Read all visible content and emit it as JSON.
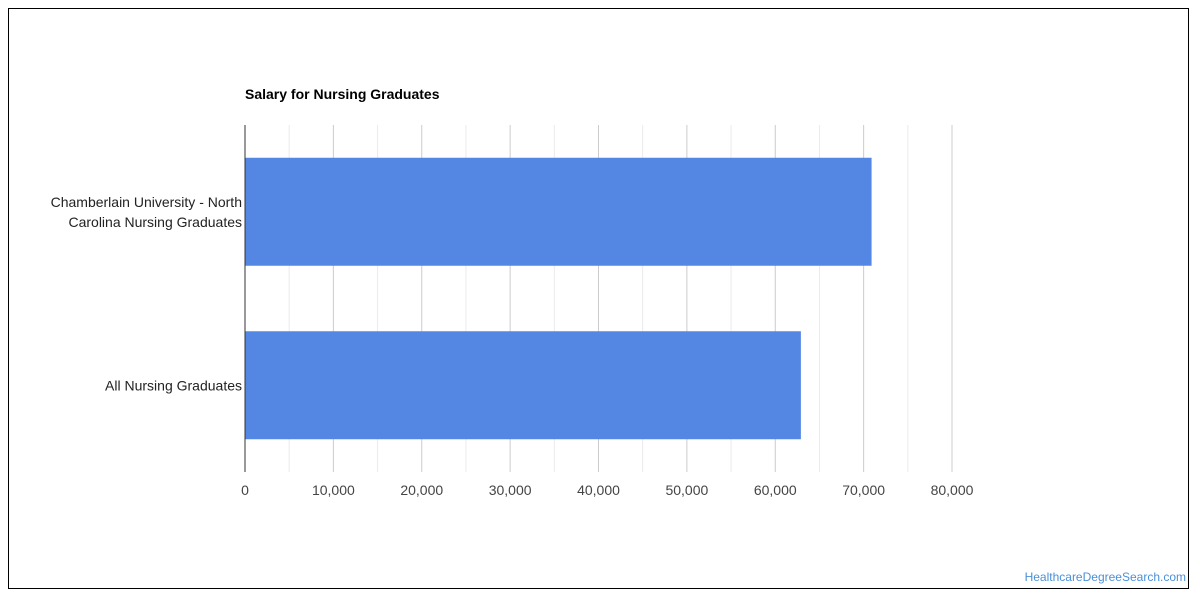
{
  "chart_data": {
    "type": "bar",
    "orientation": "horizontal",
    "title": "Salary for Nursing Graduates",
    "categories": [
      [
        "Chamberlain University - North",
        "Carolina Nursing Graduates"
      ],
      [
        "All Nursing Graduates"
      ]
    ],
    "series": [
      {
        "values": [
          70900,
          62900
        ]
      }
    ],
    "xlim": [
      0,
      80000
    ],
    "xticks": [
      0,
      10000,
      20000,
      30000,
      40000,
      50000,
      60000,
      70000,
      80000
    ],
    "xtick_labels": [
      "0",
      "10,000",
      "20,000",
      "30,000",
      "40,000",
      "50,000",
      "60,000",
      "70,000",
      "80,000"
    ],
    "grid": true,
    "legend": "none",
    "bar_color": "#5387e3"
  },
  "watermark": "HealthcareDegreeSearch.com"
}
